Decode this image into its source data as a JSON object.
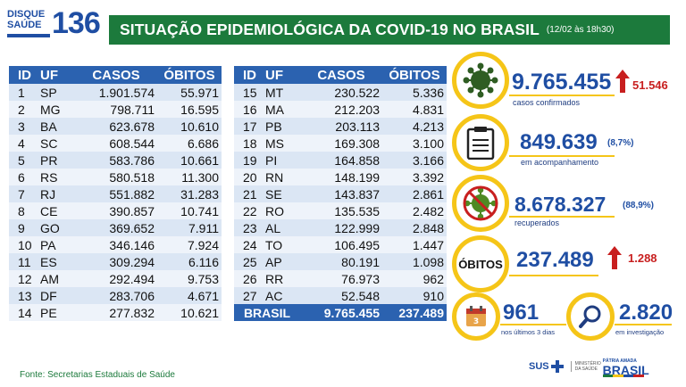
{
  "logo": {
    "line1": "DISQUE",
    "line2": "SAÚDE",
    "number": "136"
  },
  "header": {
    "title": "SITUAÇÃO EPIDEMIOLÓGICA DA COVID-19 NO BRASIL",
    "subtitle": "(12/02 às 18h30)"
  },
  "table": {
    "headers": [
      "ID",
      "UF",
      "CASOS",
      "ÓBITOS"
    ],
    "left_rows": [
      [
        "1",
        "SP",
        "1.901.574",
        "55.971"
      ],
      [
        "2",
        "MG",
        "798.711",
        "16.595"
      ],
      [
        "3",
        "BA",
        "623.678",
        "10.610"
      ],
      [
        "4",
        "SC",
        "608.544",
        "6.686"
      ],
      [
        "5",
        "PR",
        "583.786",
        "10.661"
      ],
      [
        "6",
        "RS",
        "580.518",
        "11.300"
      ],
      [
        "7",
        "RJ",
        "551.882",
        "31.283"
      ],
      [
        "8",
        "CE",
        "390.857",
        "10.741"
      ],
      [
        "9",
        "GO",
        "369.652",
        "7.911"
      ],
      [
        "10",
        "PA",
        "346.146",
        "7.924"
      ],
      [
        "11",
        "ES",
        "309.294",
        "6.116"
      ],
      [
        "12",
        "AM",
        "292.494",
        "9.753"
      ],
      [
        "13",
        "DF",
        "283.706",
        "4.671"
      ],
      [
        "14",
        "PE",
        "277.832",
        "10.621"
      ]
    ],
    "right_rows": [
      [
        "15",
        "MT",
        "230.522",
        "5.336"
      ],
      [
        "16",
        "MA",
        "212.203",
        "4.831"
      ],
      [
        "17",
        "PB",
        "203.113",
        "4.213"
      ],
      [
        "18",
        "MS",
        "169.308",
        "3.100"
      ],
      [
        "19",
        "PI",
        "164.858",
        "3.166"
      ],
      [
        "20",
        "RN",
        "148.199",
        "3.392"
      ],
      [
        "21",
        "SE",
        "143.837",
        "2.861"
      ],
      [
        "22",
        "RO",
        "135.535",
        "2.482"
      ],
      [
        "23",
        "AL",
        "122.999",
        "2.848"
      ],
      [
        "24",
        "TO",
        "106.495",
        "1.447"
      ],
      [
        "25",
        "AP",
        "80.191",
        "1.098"
      ],
      [
        "26",
        "RR",
        "76.973",
        "962"
      ],
      [
        "27",
        "AC",
        "52.548",
        "910"
      ]
    ],
    "total": {
      "label": "BRASIL",
      "cases": "9.765.455",
      "deaths": "237.489"
    }
  },
  "stats": {
    "confirmed": {
      "value": "9.765.455",
      "delta": "51.546",
      "label": "casos confirmados"
    },
    "monitoring": {
      "value": "849.639",
      "pct": "(8,7%)",
      "label": "em acompanhamento"
    },
    "recovered": {
      "value": "8.678.327",
      "pct": "(88,9%)",
      "label": "recuperados"
    },
    "deaths": {
      "badge": "ÓBITOS",
      "value": "237.489",
      "delta": "1.288"
    },
    "last3days": {
      "value": "961",
      "label": "nos últimos 3 dias"
    },
    "investigation": {
      "value": "2.820",
      "label": "em investigação"
    }
  },
  "source": "Fonte: Secretarias Estaduais de Saúde",
  "footer": {
    "sus": "SUS",
    "ministry": "MINISTÉRIO DA SAÚDE",
    "patria": "PÁTRIA AMADA",
    "brasil": "BRASIL"
  },
  "colors": {
    "green": "#1c7a3c",
    "blue": "#1f4ea3",
    "yellow": "#f5c518",
    "red": "#c81f1f",
    "virus_green": "#2f5d23"
  },
  "icons": [
    "virus-icon",
    "clipboard-icon",
    "crossed-virus-icon",
    "calendar-icon",
    "magnifier-icon",
    "arrow-up-icon"
  ]
}
